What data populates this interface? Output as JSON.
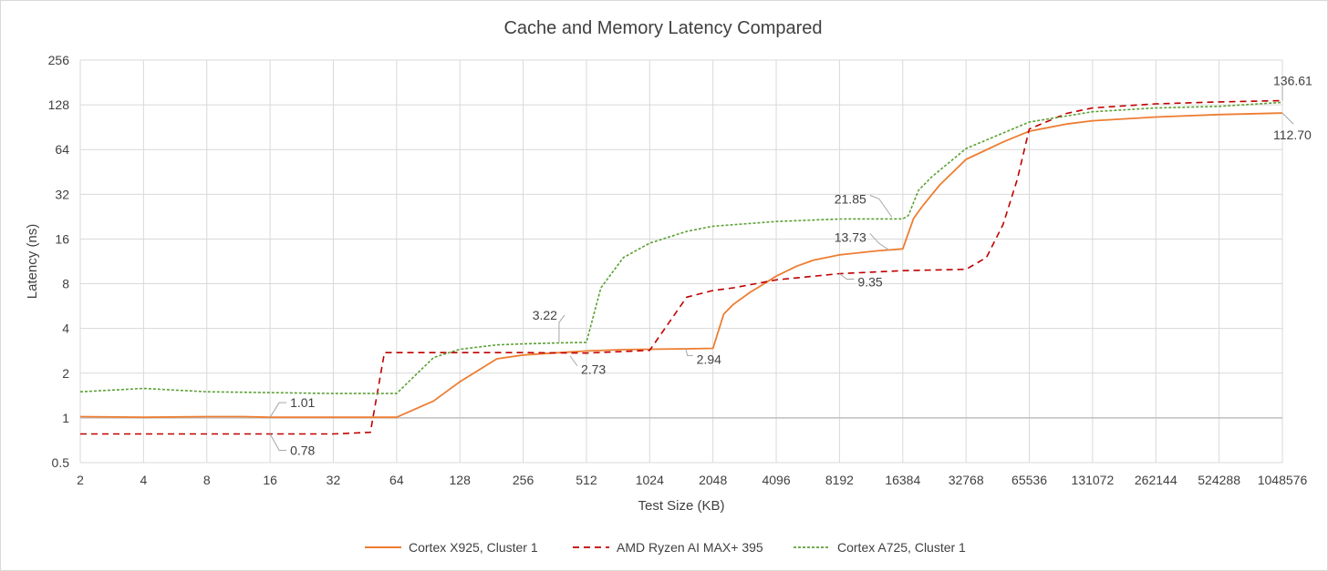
{
  "chart_data": {
    "type": "line",
    "title": "Cache and Memory Latency Compared",
    "xlabel": "Test Size (KB)",
    "ylabel": "Latency (ns)",
    "x_scale": "log2",
    "y_scale": "log2",
    "xlim": [
      2,
      1048576
    ],
    "ylim": [
      0.5,
      256
    ],
    "x_ticks": [
      "2",
      "4",
      "8",
      "16",
      "32",
      "64",
      "128",
      "256",
      "512",
      "1024",
      "2048",
      "4096",
      "8192",
      "16384",
      "32768",
      "65536",
      "131072",
      "262144",
      "524288",
      "1048576"
    ],
    "y_ticks": [
      "0.5",
      "1",
      "2",
      "4",
      "8",
      "16",
      "32",
      "64",
      "128",
      "256"
    ],
    "grid": true,
    "legend_position": "bottom",
    "series": [
      {
        "name": "Cortex X925, Cluster 1",
        "color": "#ED7D31",
        "dash": "solid",
        "points": [
          [
            2,
            1.02
          ],
          [
            4,
            1.01
          ],
          [
            8,
            1.02
          ],
          [
            12,
            1.02
          ],
          [
            16,
            1.01
          ],
          [
            24,
            1.01
          ],
          [
            32,
            1.01
          ],
          [
            48,
            1.01
          ],
          [
            64,
            1.01
          ],
          [
            96,
            1.3
          ],
          [
            128,
            1.75
          ],
          [
            192,
            2.5
          ],
          [
            256,
            2.65
          ],
          [
            384,
            2.75
          ],
          [
            512,
            2.82
          ],
          [
            768,
            2.88
          ],
          [
            1024,
            2.9
          ],
          [
            1536,
            2.92
          ],
          [
            2048,
            2.94
          ],
          [
            2304,
            5.0
          ],
          [
            2560,
            5.8
          ],
          [
            3072,
            7.0
          ],
          [
            3584,
            8.0
          ],
          [
            4096,
            9.0
          ],
          [
            5120,
            10.5
          ],
          [
            6144,
            11.5
          ],
          [
            8192,
            12.5
          ],
          [
            12288,
            13.3
          ],
          [
            16384,
            13.73
          ],
          [
            18432,
            22.0
          ],
          [
            20480,
            27.0
          ],
          [
            24576,
            37.0
          ],
          [
            32768,
            55.0
          ],
          [
            49152,
            72.0
          ],
          [
            65536,
            85.0
          ],
          [
            98304,
            95.0
          ],
          [
            131072,
            100.0
          ],
          [
            262144,
            106.0
          ],
          [
            524288,
            110.0
          ],
          [
            1048576,
            112.7
          ]
        ],
        "labels": [
          {
            "x": 16,
            "y": 1.01,
            "text": "1.01"
          },
          {
            "x": 2048,
            "y": 2.94,
            "text": "2.94"
          },
          {
            "x": 16384,
            "y": 13.73,
            "text": "13.73"
          },
          {
            "x": 1048576,
            "y": 112.7,
            "text": "112.70"
          }
        ]
      },
      {
        "name": "AMD Ryzen AI MAX+ 395",
        "color": "#C00000",
        "dash": "dashed",
        "points": [
          [
            2,
            0.78
          ],
          [
            4,
            0.78
          ],
          [
            8,
            0.78
          ],
          [
            16,
            0.78
          ],
          [
            32,
            0.78
          ],
          [
            48,
            0.8
          ],
          [
            56,
            2.75
          ],
          [
            64,
            2.75
          ],
          [
            128,
            2.75
          ],
          [
            256,
            2.75
          ],
          [
            512,
            2.73
          ],
          [
            1024,
            2.85
          ],
          [
            1536,
            6.5
          ],
          [
            2048,
            7.2
          ],
          [
            2560,
            7.5
          ],
          [
            4096,
            8.5
          ],
          [
            8192,
            9.35
          ],
          [
            16384,
            9.8
          ],
          [
            32768,
            10.0
          ],
          [
            40960,
            12.0
          ],
          [
            49152,
            20.0
          ],
          [
            57344,
            40.0
          ],
          [
            65536,
            88.0
          ],
          [
            98304,
            112.0
          ],
          [
            131072,
            122.0
          ],
          [
            262144,
            130.0
          ],
          [
            524288,
            134.0
          ],
          [
            1048576,
            136.61
          ]
        ],
        "labels": [
          {
            "x": 16,
            "y": 0.78,
            "text": "0.78"
          },
          {
            "x": 512,
            "y": 2.73,
            "text": "2.73"
          },
          {
            "x": 8192,
            "y": 9.35,
            "text": "9.35"
          },
          {
            "x": 1048576,
            "y": 136.61,
            "text": "136.61"
          }
        ]
      },
      {
        "name": "Cortex A725, Cluster 1",
        "color": "#5BA033",
        "dash": "dotted",
        "points": [
          [
            2,
            1.5
          ],
          [
            4,
            1.58
          ],
          [
            8,
            1.5
          ],
          [
            16,
            1.48
          ],
          [
            32,
            1.46
          ],
          [
            48,
            1.46
          ],
          [
            64,
            1.46
          ],
          [
            96,
            2.55
          ],
          [
            128,
            2.9
          ],
          [
            192,
            3.1
          ],
          [
            256,
            3.15
          ],
          [
            384,
            3.2
          ],
          [
            512,
            3.22
          ],
          [
            600,
            7.5
          ],
          [
            768,
            12.0
          ],
          [
            1024,
            15.0
          ],
          [
            1536,
            18.0
          ],
          [
            2048,
            19.5
          ],
          [
            4096,
            21.0
          ],
          [
            8192,
            21.8
          ],
          [
            12288,
            21.85
          ],
          [
            16384,
            21.85
          ],
          [
            17408,
            23.0
          ],
          [
            19456,
            34.0
          ],
          [
            22528,
            42.0
          ],
          [
            32768,
            65.0
          ],
          [
            65536,
            98.0
          ],
          [
            131072,
            115.0
          ],
          [
            262144,
            122.0
          ],
          [
            524288,
            125.0
          ],
          [
            1048576,
            133.0
          ]
        ],
        "labels": [
          {
            "x": 512,
            "y": 3.22,
            "text": "3.22"
          },
          {
            "x": 16384,
            "y": 21.85,
            "text": "21.85"
          }
        ]
      }
    ]
  }
}
